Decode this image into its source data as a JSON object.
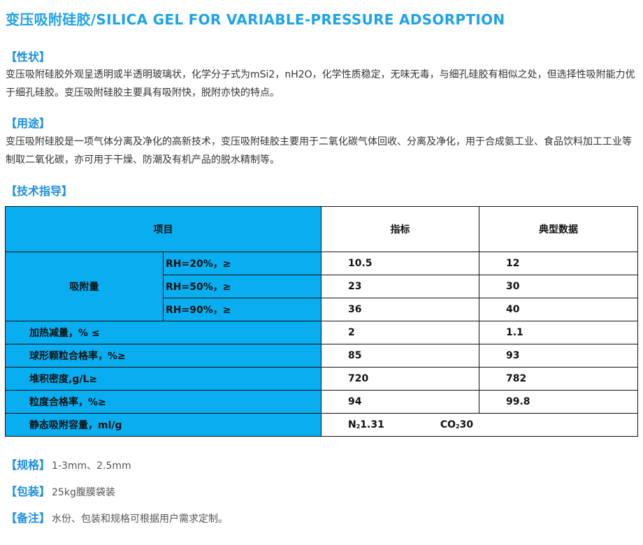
{
  "title": "变压吸附硅胶/SILICA GEL FOR VARIABLE-PRESSURE ADSORPTION",
  "sections": {
    "properties": {
      "heading": "【性状】",
      "text": "变压吸附硅胶外观呈透明或半透明玻璃状，化学分子式为mSi2，nH2O，化学性质稳定，无味无毒，与细孔硅胶有相似之处，但选择性吸附能力优于细孔硅胶。变压吸附硅胶主要具有吸附快，脱附亦快的特点。"
    },
    "usage": {
      "heading": "【用途】",
      "text": "变压吸附硅胶是一项气体分离及净化的高新技术，变压吸附硅胶主要用于二氧化碳气体回收、分离及净化，用于合成氨工业、食品饮料加工工业等制取二氧化碳，亦可用于干燥、防潮及有机产品的脱水精制等。"
    },
    "technical": {
      "heading": "【技术指导】"
    }
  },
  "table": {
    "headers": {
      "item": "项目",
      "index": "指标",
      "typical": "典型数据"
    },
    "adsorption_label": "吸附量",
    "adsorption_rows": [
      {
        "condition": "RH=20%，≥",
        "index": "10.5",
        "typical": "12"
      },
      {
        "condition": "RH=50%，≥",
        "index": "23",
        "typical": "30"
      },
      {
        "condition": "RH=90%，≥",
        "index": "36",
        "typical": "40"
      }
    ],
    "rows": [
      {
        "item": "加热减量，% ≤",
        "index": "2",
        "typical": "1.1"
      },
      {
        "item": "球形颗粒合格率，%≥",
        "index": "85",
        "typical": "93"
      },
      {
        "item": "堆积密度,g/L≥",
        "index": "720",
        "typical": "782"
      },
      {
        "item": "粒度合格率，%≥",
        "index": "94",
        "typical": "99.8"
      }
    ],
    "static": {
      "item": "静态吸附容量，ml/g",
      "n2_label": "N",
      "n2_sub": "2",
      "n2_value": "1.31",
      "co2_label": "CO",
      "co2_sub": "2",
      "co2_value": "30"
    }
  },
  "specs": [
    {
      "heading": "【规格】",
      "value": "1-3mm、2.5mm"
    },
    {
      "heading": "【包装】",
      "value": "25kg腹膜袋装"
    },
    {
      "heading": "【备注】",
      "value": "水份、包装和规格可根据用户需求定制。"
    }
  ],
  "colors": {
    "accent": "#1fa3e8",
    "table_blue": "#08aef0"
  }
}
